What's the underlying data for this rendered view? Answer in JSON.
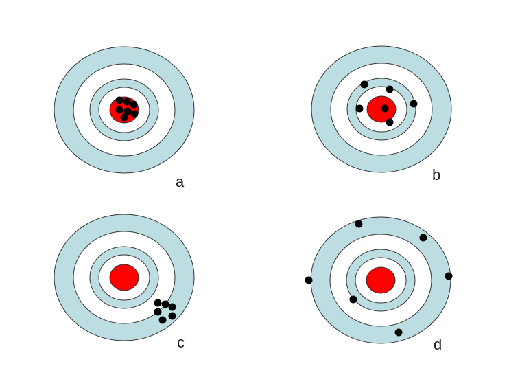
{
  "colors": {
    "outer_ring": "#bcdde2",
    "inner_ring": "#bcdde2",
    "white_ring": "#ffffff",
    "bullseye": "#ff0000",
    "hit": "#000000"
  },
  "targets": [
    {
      "label": "a"
    },
    {
      "label": "b"
    },
    {
      "label": "c"
    },
    {
      "label": "d"
    }
  ]
}
